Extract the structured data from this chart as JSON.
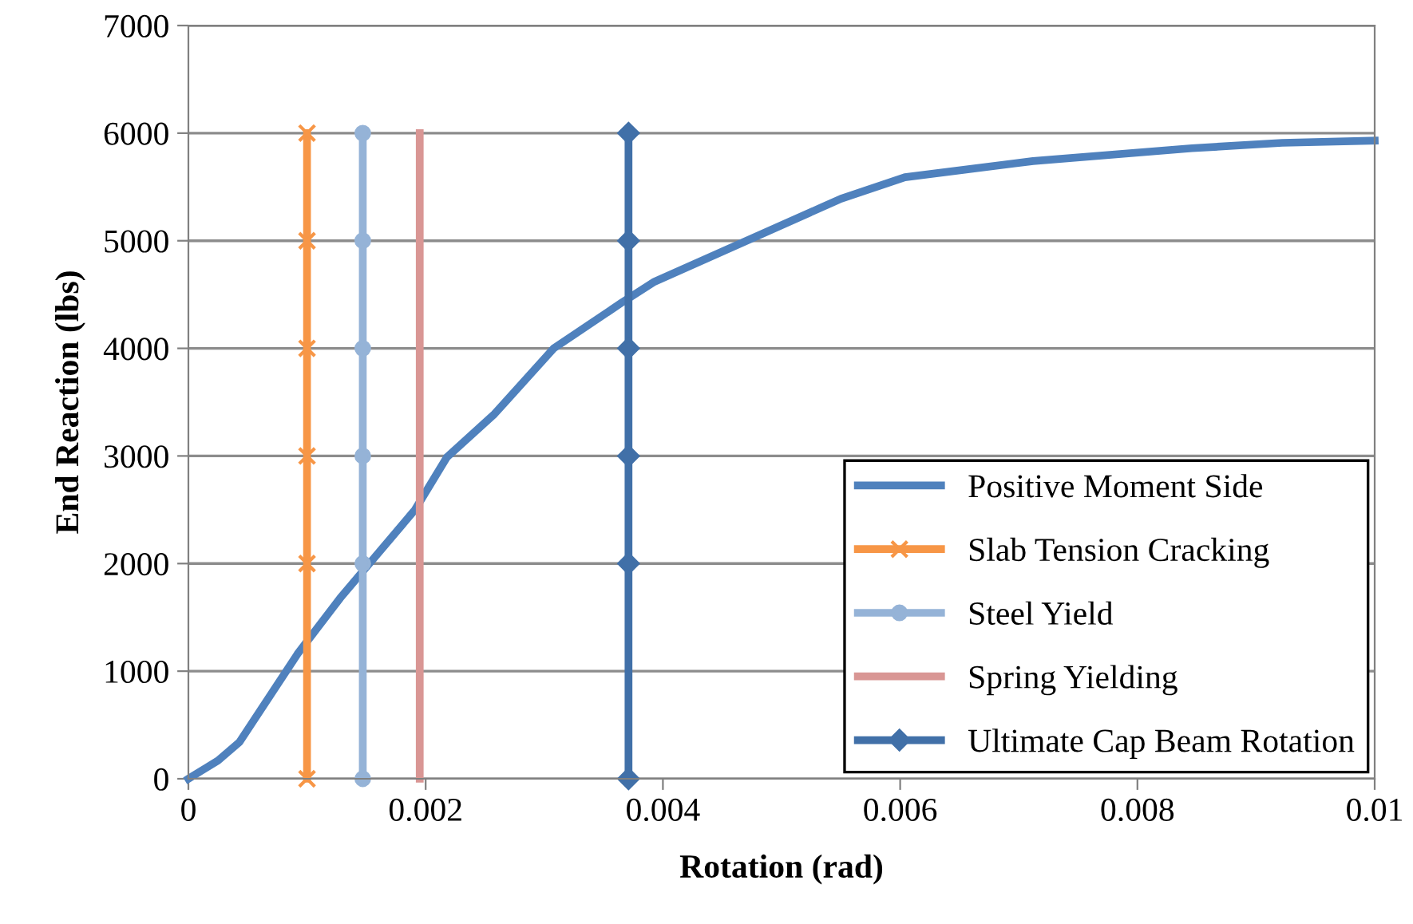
{
  "chart_data": {
    "type": "line",
    "xlabel": "Rotation (rad)",
    "ylabel": "End Reaction (lbs)",
    "xlim": [
      0,
      0.01
    ],
    "xticks": [
      0,
      0.002,
      0.004,
      0.006,
      0.008,
      0.01
    ],
    "ylim": [
      0,
      7000
    ],
    "yticks": [
      0,
      1000,
      2000,
      3000,
      4000,
      5000,
      6000,
      7000
    ],
    "grid": "y",
    "legend": "bottom right",
    "series": [
      {
        "name": "Positive Moment Side",
        "color": "#4f81bd",
        "marker": "none",
        "x": [
          0,
          0.00025,
          0.00043,
          0.00092,
          0.00128,
          0.00191,
          0.00218,
          0.00258,
          0.00308,
          0.00366,
          0.00393,
          0.0055,
          0.00604,
          0.00712,
          0.00846,
          0.00922,
          0.01
        ],
        "values": [
          0,
          170,
          340,
          1160,
          1680,
          2500,
          2990,
          3390,
          4000,
          4430,
          4620,
          5390,
          5590,
          5740,
          5860,
          5910,
          5930
        ]
      },
      {
        "name": "Slab Tension Cracking",
        "color": "#f79646",
        "marker": "cross",
        "x": [
          0.001,
          0.001,
          0.001,
          0.001,
          0.001,
          0.001
        ],
        "values": [
          0,
          2000,
          3000,
          4000,
          5000,
          6000
        ]
      },
      {
        "name": "Steel Yield",
        "color": "#95b3d7",
        "marker": "circle",
        "x": [
          0.00147,
          0.00147,
          0.00147,
          0.00147,
          0.00147,
          0.00147
        ],
        "values": [
          0,
          2000,
          3000,
          4000,
          5000,
          6000
        ]
      },
      {
        "name": "Spring Yielding",
        "color": "#d99694",
        "marker": "none",
        "x": [
          0.00195,
          0.00195,
          0.00195,
          0.00195,
          0.00195,
          0.00195
        ],
        "values": [
          0,
          2000,
          3000,
          4000,
          5000,
          6000
        ]
      },
      {
        "name": "Ultimate Cap Beam Rotation",
        "color": "#4170a8",
        "marker": "diamond",
        "x": [
          0.00371,
          0.00371,
          0.00371,
          0.00371,
          0.00371,
          0.00371
        ],
        "values": [
          0,
          2000,
          3000,
          4000,
          5000,
          6000
        ]
      }
    ]
  }
}
